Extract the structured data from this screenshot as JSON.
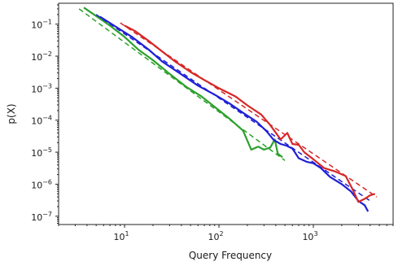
{
  "chart_data": {
    "type": "line",
    "title": "",
    "xlabel": "Query Frequency",
    "ylabel": "p(X)",
    "xscale": "log",
    "yscale": "log",
    "xlim": [
      2.0,
      7000
    ],
    "ylim": [
      5.5e-08,
      0.45
    ],
    "grid": false,
    "legend": "none",
    "x_ticks": [
      {
        "value": 10,
        "base": "10",
        "exp": "1"
      },
      {
        "value": 100,
        "base": "10",
        "exp": "2"
      },
      {
        "value": 1000,
        "base": "10",
        "exp": "3"
      }
    ],
    "y_ticks": [
      {
        "value": 1e-07,
        "base": "10",
        "exp": "−7"
      },
      {
        "value": 1e-06,
        "base": "10",
        "exp": "−6"
      },
      {
        "value": 1e-05,
        "base": "10",
        "exp": "−5"
      },
      {
        "value": 0.0001,
        "base": "10",
        "exp": "−4"
      },
      {
        "value": 0.001,
        "base": "10",
        "exp": "−3"
      },
      {
        "value": 0.01,
        "base": "10",
        "exp": "−2"
      },
      {
        "value": 0.1,
        "base": "10",
        "exp": "−1"
      }
    ],
    "series": [
      {
        "color": "#2ca02c",
        "style": "solid",
        "points": [
          [
            3.7,
            0.33
          ],
          [
            5,
            0.18
          ],
          [
            7,
            0.09
          ],
          [
            10,
            0.04
          ],
          [
            14,
            0.016
          ],
          [
            20,
            0.0075
          ],
          [
            30,
            0.0028
          ],
          [
            45,
            0.0011
          ],
          [
            65,
            0.00056
          ],
          [
            90,
            0.00026
          ],
          [
            130,
            0.00011
          ],
          [
            180,
            4.7e-05
          ],
          [
            220,
            1.2e-05
          ],
          [
            260,
            1.5e-05
          ],
          [
            300,
            1.2e-05
          ],
          [
            350,
            1.4e-05
          ],
          [
            390,
            2.5e-05
          ],
          [
            420,
            9e-06
          ],
          [
            470,
            7e-06
          ]
        ]
      },
      {
        "color": "#2ca02c",
        "style": "dashed",
        "points": [
          [
            3.3,
            0.3
          ],
          [
            500,
            5.5e-06
          ]
        ]
      },
      {
        "color": "#1f1fd6",
        "style": "solid",
        "points": [
          [
            5.5,
            0.17
          ],
          [
            8,
            0.085
          ],
          [
            12,
            0.04
          ],
          [
            18,
            0.016
          ],
          [
            25,
            0.0068
          ],
          [
            40,
            0.0027
          ],
          [
            60,
            0.0012
          ],
          [
            90,
            0.00063
          ],
          [
            130,
            0.00033
          ],
          [
            180,
            0.00017
          ],
          [
            250,
            9e-05
          ],
          [
            320,
            4.5e-05
          ],
          [
            380,
            2.4e-05
          ],
          [
            450,
            1.8e-05
          ],
          [
            520,
            1.6e-05
          ],
          [
            600,
            1.3e-05
          ],
          [
            700,
            6.5e-06
          ],
          [
            850,
            5e-06
          ],
          [
            1000,
            4.5e-06
          ],
          [
            1200,
            3.2e-06
          ],
          [
            1500,
            1.7e-06
          ],
          [
            2000,
            1e-06
          ],
          [
            2500,
            6e-07
          ],
          [
            3000,
            3e-07
          ],
          [
            3500,
            2.2e-07
          ],
          [
            3800,
            1.4e-07
          ]
        ]
      },
      {
        "color": "#1f1fd6",
        "style": "dashed",
        "points": [
          [
            5,
            0.2
          ],
          [
            4000,
            3e-07
          ]
        ]
      },
      {
        "color": "#d62728",
        "style": "solid",
        "points": [
          [
            10,
            0.09
          ],
          [
            13,
            0.06
          ],
          [
            18,
            0.03
          ],
          [
            25,
            0.014
          ],
          [
            35,
            0.0065
          ],
          [
            50,
            0.0032
          ],
          [
            70,
            0.0018
          ],
          [
            100,
            0.001
          ],
          [
            150,
            0.00055
          ],
          [
            200,
            0.00029
          ],
          [
            280,
            0.00015
          ],
          [
            350,
            7e-05
          ],
          [
            450,
            2.5e-05
          ],
          [
            530,
            4e-05
          ],
          [
            600,
            1.8e-05
          ],
          [
            700,
            1.7e-05
          ],
          [
            800,
            1e-05
          ],
          [
            1000,
            6e-06
          ],
          [
            1300,
            3.2e-06
          ],
          [
            1700,
            2.5e-06
          ],
          [
            2200,
            1.8e-06
          ],
          [
            2600,
            7e-07
          ],
          [
            3000,
            2.8e-07
          ],
          [
            3500,
            3.5e-07
          ],
          [
            4000,
            4.5e-07
          ],
          [
            4500,
            5e-07
          ]
        ]
      },
      {
        "color": "#d62728",
        "style": "dashed",
        "points": [
          [
            9,
            0.11
          ],
          [
            4700,
            4e-07
          ]
        ]
      }
    ]
  }
}
